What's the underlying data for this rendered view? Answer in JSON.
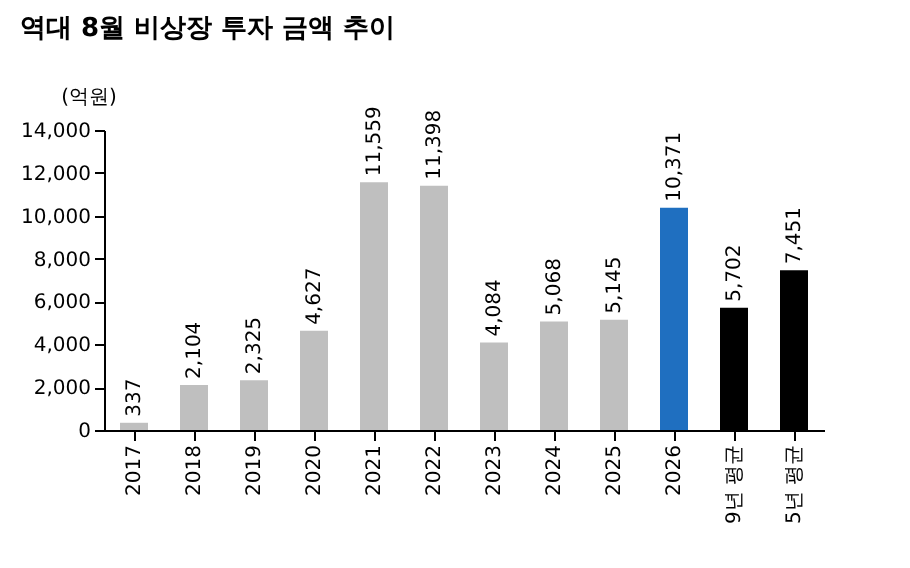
{
  "chart_data": {
    "type": "bar",
    "title": "역대 8월 비상장 투자 금액 추이",
    "ylabel": "(억원)",
    "categories": [
      "2017",
      "2018",
      "2019",
      "2020",
      "2021",
      "2022",
      "2023",
      "2024",
      "2025",
      "2026",
      "9년 평균",
      "5년 평균"
    ],
    "values": [
      337,
      2104,
      2325,
      4627,
      11559,
      11398,
      4084,
      5068,
      5145,
      10371,
      5702,
      7451
    ],
    "colors": [
      "#bfbfbf",
      "#bfbfbf",
      "#bfbfbf",
      "#bfbfbf",
      "#bfbfbf",
      "#bfbfbf",
      "#bfbfbf",
      "#bfbfbf",
      "#bfbfbf",
      "#1f6fc0",
      "#000000",
      "#000000"
    ],
    "ylim": [
      0,
      14000
    ],
    "yticks": [
      {
        "value": 0,
        "label": "0"
      },
      {
        "value": 2000,
        "label": "2,000"
      },
      {
        "value": 4000,
        "label": "4,000"
      },
      {
        "value": 6000,
        "label": "6,000"
      },
      {
        "value": 8000,
        "label": "8,000"
      },
      {
        "value": 10000,
        "label": "10,000"
      },
      {
        "value": 12000,
        "label": "12,000"
      },
      {
        "value": 14000,
        "label": "14,000"
      }
    ],
    "value_labels": [
      "337",
      "2,104",
      "2,325",
      "4,627",
      "11,559",
      "11,398",
      "4,084",
      "5,068",
      "5,145",
      "10,371",
      "5,702",
      "7,451"
    ],
    "grid": false
  }
}
